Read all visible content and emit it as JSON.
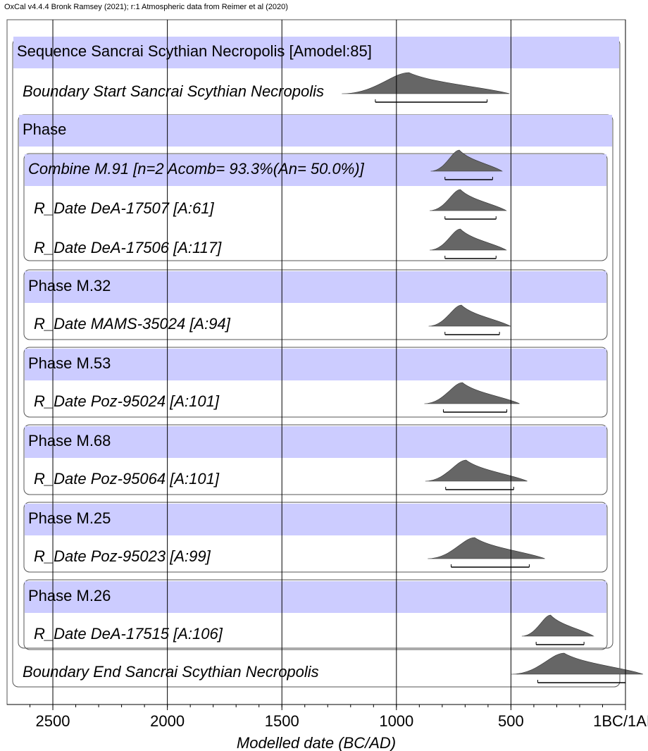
{
  "chart_data": {
    "type": "oxcal",
    "header": "OxCal v4.4.4 Bronk Ramsey (2021); r:1 Atmospheric data from Reimer et al (2020)",
    "xlabel": "Modelled date (BC/AD)",
    "xlim": [
      2700,
      0
    ],
    "xticks": [
      2500,
      2000,
      1500,
      1000,
      500,
      {
        "value": 0,
        "label": "1BC/1AD"
      }
    ],
    "grid": true,
    "color": "#666666",
    "rows": [
      {
        "label": "Sequence Sancrai Scythian Necropolis [Amodel:85]"
      },
      {
        "label": "Boundary Start Sancrai Scythian Necropolis",
        "range": [
          1092,
          604
        ]
      },
      {
        "label": "Phase"
      },
      {
        "label": "Combine M.91 [n=2 Acomb= 93.3%(An= 50.0%)]",
        "range": [
          788,
          580
        ]
      },
      {
        "label": "R_Date DeA-17507 [A:61]",
        "range": [
          788,
          565
        ]
      },
      {
        "label": "R_Date DeA-17506 [A:117]",
        "range": [
          788,
          565
        ]
      },
      {
        "label": "Phase M.32"
      },
      {
        "label": "R_Date MAMS-35024 [A:94]",
        "range": [
          788,
          550
        ]
      },
      {
        "label": "Phase M.53"
      },
      {
        "label": "R_Date Poz-95024 [A:101]",
        "range": [
          795,
          518
        ]
      },
      {
        "label": "Phase M.68"
      },
      {
        "label": "R_Date Poz-95064 [A:101]",
        "range": [
          785,
          488
        ]
      },
      {
        "label": "Phase M.25"
      },
      {
        "label": "R_Date Poz-95023 [A:99]",
        "range": [
          761,
          420
        ]
      },
      {
        "label": "Phase M.26"
      },
      {
        "label": "R_Date DeA-17515 [A:106]",
        "range": [
          390,
          181
        ]
      },
      {
        "label": "Boundary End Sancrai Scythian Necropolis",
        "range": [
          383,
          0
        ]
      }
    ]
  }
}
